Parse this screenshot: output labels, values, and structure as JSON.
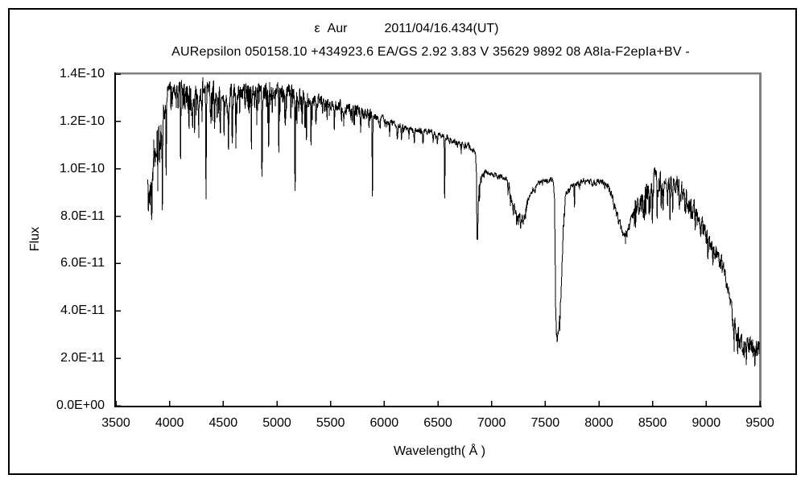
{
  "window": {
    "background": "#ffffff",
    "border_color": "#000000"
  },
  "chart_data": {
    "type": "line",
    "title_star": "ε  Aur",
    "title_date": "2011/04/16.434(UT)",
    "subtitle": "AURepsilon 050158.10 +434923.6 EA/GS 2.92 3.83 V 35629 9892 08 A8Ia-F2epIa+BV -",
    "xlabel": "Wavelength( Å )",
    "ylabel": "Flux",
    "xlim": [
      3500,
      9500
    ],
    "ylim_e11": [
      0,
      14
    ],
    "grid": false,
    "legend": false,
    "x_ticks": [
      3500,
      4000,
      4500,
      5000,
      5500,
      6000,
      6500,
      7000,
      7500,
      8000,
      8500,
      9000,
      9500
    ],
    "y_ticks": [
      {
        "v": 0,
        "label": "0.0E+00"
      },
      {
        "v": 2,
        "label": "2.0E-11"
      },
      {
        "v": 4,
        "label": "4.0E-11"
      },
      {
        "v": 6,
        "label": "6.0E-11"
      },
      {
        "v": 8,
        "label": "8.0E-11"
      },
      {
        "v": 10,
        "label": "1.0E-10"
      },
      {
        "v": 12,
        "label": "1.2E-10"
      },
      {
        "v": 14,
        "label": "1.4E-10"
      }
    ],
    "axis_colors": {
      "left_bottom": "#000000",
      "top_right": "#808080"
    },
    "series": {
      "name": "epsilon-aur-spectrum",
      "color": "#000000",
      "lambda_start": 3795,
      "lambda_end": 9497,
      "step": 2.5,
      "seed": 42,
      "flux_unit": "1e-11 erg/s/cm2/A",
      "envelope_e11": [
        [
          3795,
          9.2
        ],
        [
          3802,
          8.6
        ],
        [
          3810,
          8.8
        ],
        [
          3820,
          9.2
        ],
        [
          3832,
          9.7
        ],
        [
          3845,
          10.1
        ],
        [
          3858,
          10.5
        ],
        [
          3872,
          10.8
        ],
        [
          3886,
          11.1
        ],
        [
          3900,
          11.4
        ],
        [
          3914,
          11.7
        ],
        [
          3928,
          12.0
        ],
        [
          3942,
          12.3
        ],
        [
          3956,
          12.6
        ],
        [
          3970,
          12.8
        ],
        [
          3985,
          13.05
        ],
        [
          4000,
          13.25
        ],
        [
          4020,
          13.45
        ],
        [
          4040,
          13.5
        ],
        [
          4070,
          13.45
        ],
        [
          4100,
          13.4
        ],
        [
          4140,
          13.35
        ],
        [
          4180,
          13.3
        ],
        [
          4220,
          13.2
        ],
        [
          4260,
          13.15
        ],
        [
          4300,
          13.2
        ],
        [
          4340,
          13.3
        ],
        [
          4380,
          13.25
        ],
        [
          4420,
          13.1
        ],
        [
          4460,
          12.95
        ],
        [
          4500,
          13.0
        ],
        [
          4540,
          13.05
        ],
        [
          4580,
          13.1
        ],
        [
          4620,
          13.2
        ],
        [
          4660,
          13.35
        ],
        [
          4700,
          13.4
        ],
        [
          4740,
          13.25
        ],
        [
          4780,
          13.3
        ],
        [
          4820,
          13.25
        ],
        [
          4860,
          13.1
        ],
        [
          4900,
          13.3
        ],
        [
          4940,
          13.3
        ],
        [
          4980,
          13.3
        ],
        [
          5020,
          13.25
        ],
        [
          5060,
          13.2
        ],
        [
          5100,
          13.3
        ],
        [
          5140,
          13.2
        ],
        [
          5180,
          13.1
        ],
        [
          5220,
          13.05
        ],
        [
          5260,
          13.0
        ],
        [
          5300,
          13.0
        ],
        [
          5350,
          12.9
        ],
        [
          5400,
          12.9
        ],
        [
          5450,
          12.8
        ],
        [
          5500,
          12.75
        ],
        [
          5560,
          12.65
        ],
        [
          5620,
          12.6
        ],
        [
          5680,
          12.55
        ],
        [
          5740,
          12.45
        ],
        [
          5800,
          12.4
        ],
        [
          5860,
          12.3
        ],
        [
          5920,
          12.2
        ],
        [
          5980,
          12.1
        ],
        [
          6040,
          12.0
        ],
        [
          6100,
          11.9
        ],
        [
          6160,
          11.8
        ],
        [
          6220,
          11.7
        ],
        [
          6280,
          11.6
        ],
        [
          6340,
          11.6
        ],
        [
          6400,
          11.6
        ],
        [
          6460,
          11.5
        ],
        [
          6520,
          11.4
        ],
        [
          6580,
          11.3
        ],
        [
          6640,
          11.15
        ],
        [
          6700,
          11.05
        ],
        [
          6760,
          11.0
        ],
        [
          6810,
          10.9
        ],
        [
          6845,
          10.75
        ],
        [
          6857,
          10.3
        ],
        [
          6864,
          7.2
        ],
        [
          6869,
          6.8
        ],
        [
          6875,
          8.1
        ],
        [
          6882,
          9.2
        ],
        [
          6892,
          9.5
        ],
        [
          6910,
          9.7
        ],
        [
          6935,
          9.9
        ],
        [
          6960,
          9.85
        ],
        [
          7000,
          9.8
        ],
        [
          7050,
          9.7
        ],
        [
          7100,
          9.65
        ],
        [
          7140,
          9.55
        ],
        [
          7162,
          9.25
        ],
        [
          7185,
          8.65
        ],
        [
          7205,
          8.35
        ],
        [
          7230,
          8.0
        ],
        [
          7255,
          7.85
        ],
        [
          7280,
          7.8
        ],
        [
          7305,
          8.1
        ],
        [
          7330,
          8.5
        ],
        [
          7358,
          8.85
        ],
        [
          7390,
          9.1
        ],
        [
          7425,
          9.35
        ],
        [
          7460,
          9.45
        ],
        [
          7500,
          9.5
        ],
        [
          7540,
          9.55
        ],
        [
          7574,
          9.55
        ],
        [
          7587,
          8.6
        ],
        [
          7596,
          4.6
        ],
        [
          7604,
          3.15
        ],
        [
          7613,
          3.0
        ],
        [
          7622,
          3.3
        ],
        [
          7633,
          3.7
        ],
        [
          7645,
          4.5
        ],
        [
          7657,
          6.2
        ],
        [
          7669,
          7.5
        ],
        [
          7681,
          8.4
        ],
        [
          7694,
          8.9
        ],
        [
          7715,
          9.1
        ],
        [
          7740,
          9.25
        ],
        [
          7770,
          9.35
        ],
        [
          7800,
          9.4
        ],
        [
          7840,
          9.45
        ],
        [
          7880,
          9.45
        ],
        [
          7920,
          9.4
        ],
        [
          7960,
          9.4
        ],
        [
          8000,
          9.45
        ],
        [
          8040,
          9.4
        ],
        [
          8080,
          9.3
        ],
        [
          8112,
          9.0
        ],
        [
          8144,
          8.5
        ],
        [
          8176,
          7.9
        ],
        [
          8208,
          7.5
        ],
        [
          8235,
          7.25
        ],
        [
          8262,
          7.35
        ],
        [
          8290,
          7.7
        ],
        [
          8320,
          8.1
        ],
        [
          8350,
          8.4
        ],
        [
          8385,
          8.6
        ],
        [
          8420,
          8.8
        ],
        [
          8460,
          9.2
        ],
        [
          8500,
          9.55
        ],
        [
          8530,
          9.6
        ],
        [
          8565,
          9.5
        ],
        [
          8600,
          9.4
        ],
        [
          8640,
          9.3
        ],
        [
          8680,
          9.2
        ],
        [
          8720,
          9.2
        ],
        [
          8760,
          9.1
        ],
        [
          8800,
          9.0
        ],
        [
          8840,
          8.7
        ],
        [
          8880,
          8.3
        ],
        [
          8920,
          8.0
        ],
        [
          8960,
          7.6
        ],
        [
          9000,
          7.2
        ],
        [
          9040,
          6.8
        ],
        [
          9080,
          6.5
        ],
        [
          9115,
          6.25
        ],
        [
          9145,
          6.0
        ],
        [
          9175,
          5.5
        ],
        [
          9205,
          4.85
        ],
        [
          9235,
          4.15
        ],
        [
          9265,
          3.4
        ],
        [
          9295,
          2.9
        ],
        [
          9325,
          2.6
        ],
        [
          9355,
          2.4
        ],
        [
          9385,
          2.5
        ],
        [
          9415,
          2.7
        ],
        [
          9445,
          2.5
        ],
        [
          9475,
          2.5
        ],
        [
          9497,
          2.7
        ]
      ],
      "absorption_lines": [
        [
          3835,
          1.0,
          6
        ],
        [
          3890,
          1.7,
          6
        ],
        [
          3933,
          3.1,
          6
        ],
        [
          3968,
          2.9,
          6
        ],
        [
          4026,
          0.8,
          5
        ],
        [
          4078,
          0.9,
          5
        ],
        [
          4102,
          3.2,
          6
        ],
        [
          4144,
          1.0,
          5
        ],
        [
          4179,
          1.3,
          5
        ],
        [
          4215,
          1.0,
          5
        ],
        [
          4233,
          1.4,
          5
        ],
        [
          4272,
          1.7,
          5
        ],
        [
          4303,
          1.5,
          5
        ],
        [
          4340,
          4.5,
          6
        ],
        [
          4385,
          1.2,
          5
        ],
        [
          4417,
          1.6,
          5
        ],
        [
          4443,
          1.0,
          5
        ],
        [
          4472,
          1.9,
          5
        ],
        [
          4508,
          1.6,
          5
        ],
        [
          4549,
          2.3,
          5
        ],
        [
          4584,
          2.3,
          5
        ],
        [
          4618,
          2.4,
          5
        ],
        [
          4654,
          1.0,
          5
        ],
        [
          4700,
          0.8,
          5
        ],
        [
          4762,
          0.9,
          5
        ],
        [
          4810,
          0.8,
          5
        ],
        [
          4861,
          3.4,
          6
        ],
        [
          4924,
          2.1,
          5
        ],
        [
          4957,
          1.0,
          5
        ],
        [
          5018,
          2.7,
          5
        ],
        [
          5080,
          0.9,
          5
        ],
        [
          5130,
          1.0,
          5
        ],
        [
          5169,
          4.4,
          6
        ],
        [
          5235,
          1.0,
          5
        ],
        [
          5276,
          1.9,
          5
        ],
        [
          5317,
          1.5,
          5
        ],
        [
          5363,
          0.8,
          5
        ],
        [
          5425,
          0.7,
          5
        ],
        [
          5535,
          0.8,
          5
        ],
        [
          5625,
          0.6,
          5
        ],
        [
          5780,
          0.8,
          5
        ],
        [
          5890,
          3.6,
          6
        ],
        [
          5960,
          0.4,
          5
        ],
        [
          6050,
          0.5,
          5
        ],
        [
          6122,
          0.6,
          5
        ],
        [
          6160,
          0.5,
          5
        ],
        [
          6230,
          0.4,
          5
        ],
        [
          6280,
          0.5,
          6
        ],
        [
          6360,
          0.4,
          5
        ],
        [
          6456,
          0.5,
          5
        ],
        [
          6495,
          0.4,
          5
        ],
        [
          6563,
          2.7,
          6
        ],
        [
          6610,
          0.3,
          5
        ],
        [
          6717,
          0.4,
          5
        ],
        [
          7772,
          1.2,
          5
        ],
        [
          8413,
          1.0,
          5
        ],
        [
          8438,
          1.0,
          5
        ],
        [
          8467,
          1.1,
          5
        ],
        [
          8498,
          1.7,
          5
        ],
        [
          8542,
          1.9,
          5
        ],
        [
          8582,
          1.1,
          5
        ],
        [
          8598,
          1.0,
          5
        ],
        [
          8662,
          1.8,
          5
        ],
        [
          8688,
          0.9,
          5
        ],
        [
          8750,
          1.1,
          5
        ],
        [
          8806,
          0.8,
          5
        ],
        [
          8865,
          0.9,
          5
        ],
        [
          9015,
          0.8,
          6
        ],
        [
          9061,
          0.7,
          6
        ]
      ],
      "noise_regions": [
        [
          3795,
          3975,
          0.7,
          0.3,
          1.4
        ],
        [
          3975,
          4120,
          0.33,
          0.25,
          1.0
        ],
        [
          4120,
          4500,
          0.38,
          0.35,
          1.6
        ],
        [
          4500,
          5300,
          0.34,
          0.3,
          1.4
        ],
        [
          5300,
          5900,
          0.2,
          0.2,
          0.8
        ],
        [
          5900,
          6855,
          0.11,
          0.15,
          0.45
        ],
        [
          6855,
          6900,
          0.28,
          0.25,
          0.6
        ],
        [
          6900,
          7150,
          0.09,
          0.15,
          0.3
        ],
        [
          7150,
          7345,
          0.22,
          0.3,
          0.55
        ],
        [
          7345,
          7582,
          0.09,
          0.12,
          0.3
        ],
        [
          7582,
          7688,
          0.3,
          0.3,
          0.8
        ],
        [
          7688,
          8100,
          0.11,
          0.12,
          0.35
        ],
        [
          8100,
          8330,
          0.16,
          0.15,
          0.4
        ],
        [
          8330,
          8900,
          0.36,
          0.3,
          1.0
        ],
        [
          8900,
          9240,
          0.27,
          0.2,
          0.6
        ],
        [
          9240,
          9500,
          0.42,
          0.25,
          0.9
        ]
      ]
    }
  }
}
